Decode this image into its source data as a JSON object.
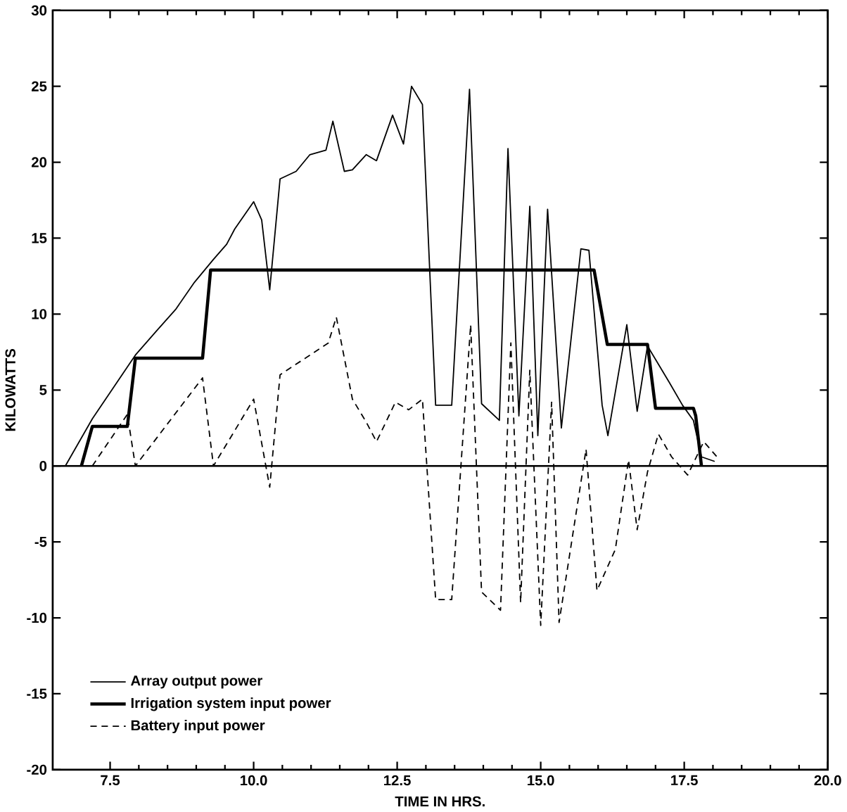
{
  "chart_data": {
    "type": "line",
    "xlabel": "TIME IN HRS.",
    "ylabel": "KILOWATTS",
    "xlim": [
      6.5,
      20
    ],
    "ylim": [
      -20,
      30
    ],
    "xticks": [
      7.5,
      {
        "value": 10,
        "label": "10.0"
      },
      {
        "value": 12.5,
        "label": "12.5"
      },
      {
        "value": 15,
        "label": "15.0"
      },
      {
        "value": 17.5,
        "label": "17.5"
      },
      {
        "value": 20,
        "label": "20.0"
      }
    ],
    "yticks": [
      -20,
      -15,
      -10,
      -5,
      0,
      5,
      10,
      15,
      20,
      25,
      30
    ],
    "grid": false,
    "legend": "bottom left",
    "marker": "none",
    "ref_lines": [
      {
        "axis": "y",
        "value": 0,
        "color": "#000000"
      }
    ],
    "series": [
      {
        "name": "Array output power",
        "color": "#000000",
        "line_style": "solid",
        "x": [
          6.72,
          7.19,
          7.94,
          8.31,
          8.64,
          8.97,
          9.3,
          9.53,
          9.67,
          10.0,
          10.14,
          10.28,
          10.46,
          10.74,
          10.98,
          11.26,
          11.38,
          11.58,
          11.72,
          11.96,
          12.14,
          12.42,
          12.61,
          12.75,
          12.94,
          13.17,
          13.45,
          13.76,
          13.97,
          14.28,
          14.43,
          14.62,
          14.81,
          14.95,
          15.12,
          15.36,
          15.7,
          15.84,
          16.07,
          16.17,
          16.5,
          16.68,
          16.86,
          17.24,
          17.47,
          17.66,
          17.8,
          18.03
        ],
        "values": [
          0,
          3.1,
          7.3,
          8.9,
          10.3,
          12.1,
          13.6,
          14.6,
          15.6,
          17.4,
          16.2,
          11.6,
          18.9,
          19.4,
          20.5,
          20.8,
          22.7,
          19.4,
          19.5,
          20.5,
          20.1,
          23.1,
          21.2,
          25.0,
          23.8,
          4.0,
          4.0,
          24.8,
          4.1,
          3.0,
          20.9,
          3.3,
          17.1,
          2.0,
          16.9,
          2.5,
          14.3,
          14.2,
          4.0,
          2.0,
          9.3,
          3.6,
          7.9,
          5.5,
          4.0,
          3.0,
          0.6,
          0.3
        ]
      },
      {
        "name": "Irrigation system input power",
        "color": "#000000",
        "line_style": "solid",
        "x": [
          7.0,
          7.19,
          7.8,
          7.94,
          9.11,
          9.25,
          15.93,
          16.16,
          16.86,
          17.0,
          17.66,
          17.7,
          17.8
        ],
        "values": [
          0,
          2.6,
          2.6,
          7.1,
          7.1,
          12.9,
          12.9,
          8.0,
          8.0,
          3.8,
          3.8,
          3.3,
          0
        ]
      },
      {
        "name": "Battery input power",
        "color": "#000000",
        "line_style": "dashed",
        "x": [
          7.19,
          7.8,
          7.94,
          9.11,
          9.3,
          10.0,
          10.28,
          10.46,
          11.3,
          11.44,
          11.72,
          11.96,
          12.14,
          12.47,
          12.7,
          12.94,
          13.17,
          13.45,
          13.78,
          13.97,
          14.3,
          14.48,
          14.65,
          14.81,
          15.0,
          15.19,
          15.32,
          15.79,
          15.98,
          16.3,
          16.53,
          16.68,
          16.86,
          17.05,
          17.28,
          17.56,
          17.84,
          18.07
        ],
        "values": [
          0,
          3.4,
          0,
          5.8,
          0,
          4.4,
          -1.4,
          6.0,
          8.1,
          9.8,
          4.4,
          2.9,
          1.6,
          4.2,
          3.7,
          4.4,
          -8.8,
          -8.8,
          9.3,
          -8.3,
          -9.5,
          8.1,
          -9.0,
          6.3,
          -10.5,
          4.2,
          -10.3,
          1.1,
          -8.2,
          -5.5,
          0.4,
          -4.2,
          -0.4,
          2.1,
          0.6,
          -0.6,
          1.6,
          0.6
        ]
      }
    ]
  }
}
